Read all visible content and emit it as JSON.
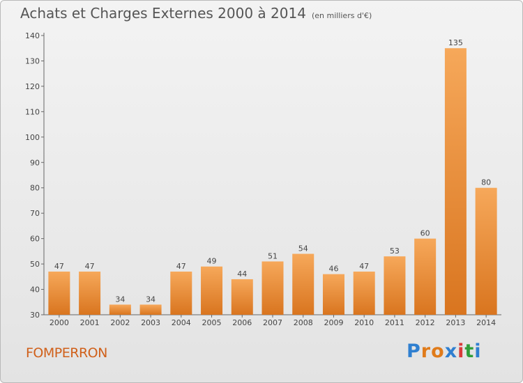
{
  "header": {
    "title": "Achats et Charges Externes 2000 à 2014",
    "unit": "(en milliers d'€)"
  },
  "commune": "FOMPERRON",
  "logo": {
    "text": "Proxiti",
    "letter_colors": [
      "#2f7fd0",
      "#e07b1a",
      "#e07b1a",
      "#2f7fd0",
      "#d83a3a",
      "#2f9e3a",
      "#2f7fd0"
    ]
  },
  "colors": {
    "bar_top": "#f6a85a",
    "bar_bottom": "#d9751f",
    "axis": "#666666"
  },
  "chart_data": {
    "type": "bar",
    "categories": [
      "2000",
      "2001",
      "2002",
      "2003",
      "2004",
      "2005",
      "2006",
      "2007",
      "2008",
      "2009",
      "2010",
      "2011",
      "2012",
      "2013",
      "2014"
    ],
    "values": [
      47,
      47,
      34,
      34,
      47,
      49,
      44,
      51,
      54,
      46,
      47,
      53,
      60,
      135,
      80
    ],
    "ylim": [
      30,
      140
    ],
    "yticks": [
      30,
      40,
      50,
      60,
      70,
      80,
      90,
      100,
      110,
      120,
      130,
      140
    ],
    "xlabel": "",
    "ylabel": "",
    "grid": false
  }
}
